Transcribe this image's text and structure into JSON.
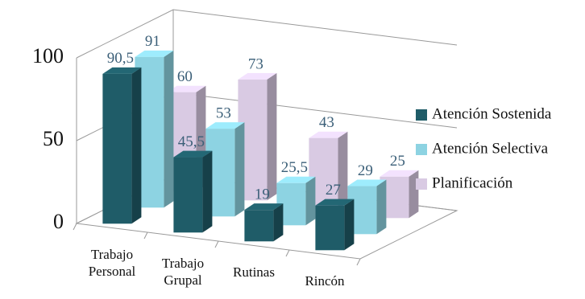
{
  "chart_data": {
    "type": "bar3d",
    "categories": [
      "Trabajo Personal",
      "Trabajo Grupal",
      "Rutinas",
      "Rincón"
    ],
    "series": [
      {
        "name": "Atención Sostenida",
        "color": "#1f5c68",
        "values": [
          90.5,
          45.5,
          19,
          27
        ],
        "value_labels": [
          "90,5",
          "45,5",
          "19",
          "27"
        ]
      },
      {
        "name": "Atención Selectiva",
        "color": "#8dd3e2",
        "values": [
          91,
          53,
          25.5,
          29
        ],
        "value_labels": [
          "91",
          "53",
          "25,5",
          "29"
        ]
      },
      {
        "name": "Planificación",
        "color": "#d9cae3",
        "values": [
          60,
          73,
          43,
          25
        ]
      }
    ],
    "ylim": [
      0,
      100
    ],
    "yticks": [
      0,
      50,
      100
    ],
    "grid": true
  }
}
